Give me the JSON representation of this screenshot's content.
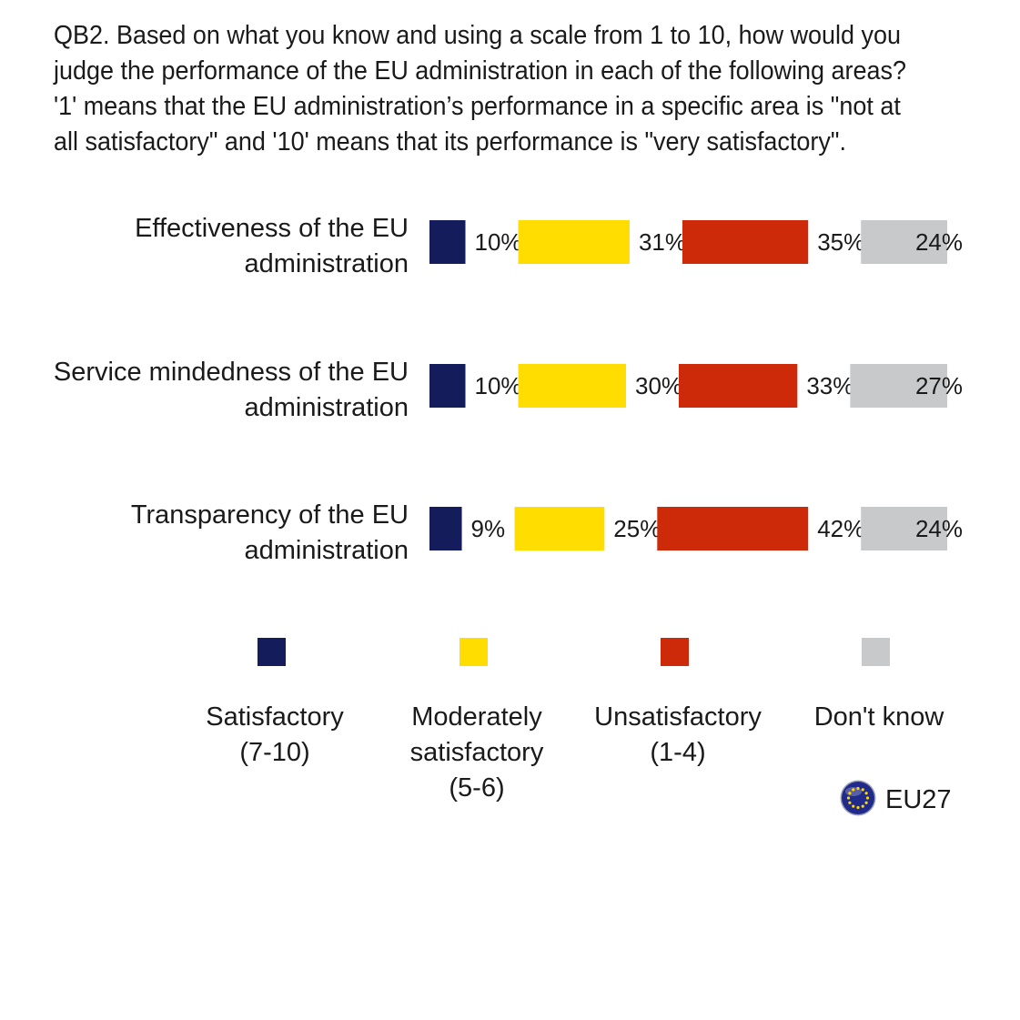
{
  "question": "QB2. Based on what you know and using a scale from 1 to 10, how would you judge the performance of the EU administration in each of the following areas? '1' means that the EU administration’s performance in a specific area is \"not at all satisfactory\" and '10' means that its performance is \"very satisfactory\".",
  "chart_data": {
    "type": "bar",
    "orientation": "horizontal",
    "stacked": false,
    "categories": [
      [
        "Effectiveness of the EU",
        "administration"
      ],
      [
        "Service mindedness of the EU",
        "administration"
      ],
      [
        "Transparency of the EU",
        "administration"
      ]
    ],
    "series": [
      {
        "name": "Satisfactory (7-10)",
        "name_lines": [
          "Satisfactory",
          "(7-10)"
        ],
        "color": "#141c5c",
        "values": [
          10,
          10,
          9
        ],
        "labels": [
          "10%",
          "10%",
          "9%"
        ]
      },
      {
        "name": "Moderately satisfactory (5-6)",
        "name_lines": [
          "Moderately",
          "satisfactory",
          "(5-6)"
        ],
        "color": "#ffdd00",
        "values": [
          31,
          30,
          25
        ],
        "labels": [
          "31%",
          "30%",
          "25%"
        ]
      },
      {
        "name": "Unsatisfactory (1-4)",
        "name_lines": [
          "Unsatisfactory",
          "(1-4)"
        ],
        "color": "#cc2a08",
        "values": [
          35,
          33,
          42
        ],
        "labels": [
          "35%",
          "33%",
          "42%"
        ]
      },
      {
        "name": "Don't know",
        "name_lines": [
          "Don't know"
        ],
        "color": "#c8c9cb",
        "values": [
          24,
          27,
          24
        ],
        "labels": [
          "24%",
          "27%",
          "24%"
        ]
      }
    ],
    "unit": "%",
    "legend_position": "bottom",
    "grid": false
  },
  "region_label": "EU27",
  "colors": {
    "flag_blue": "#1f2a8a",
    "flag_star": "#ffd700"
  },
  "icons": {
    "region": "eu-flag-icon"
  }
}
